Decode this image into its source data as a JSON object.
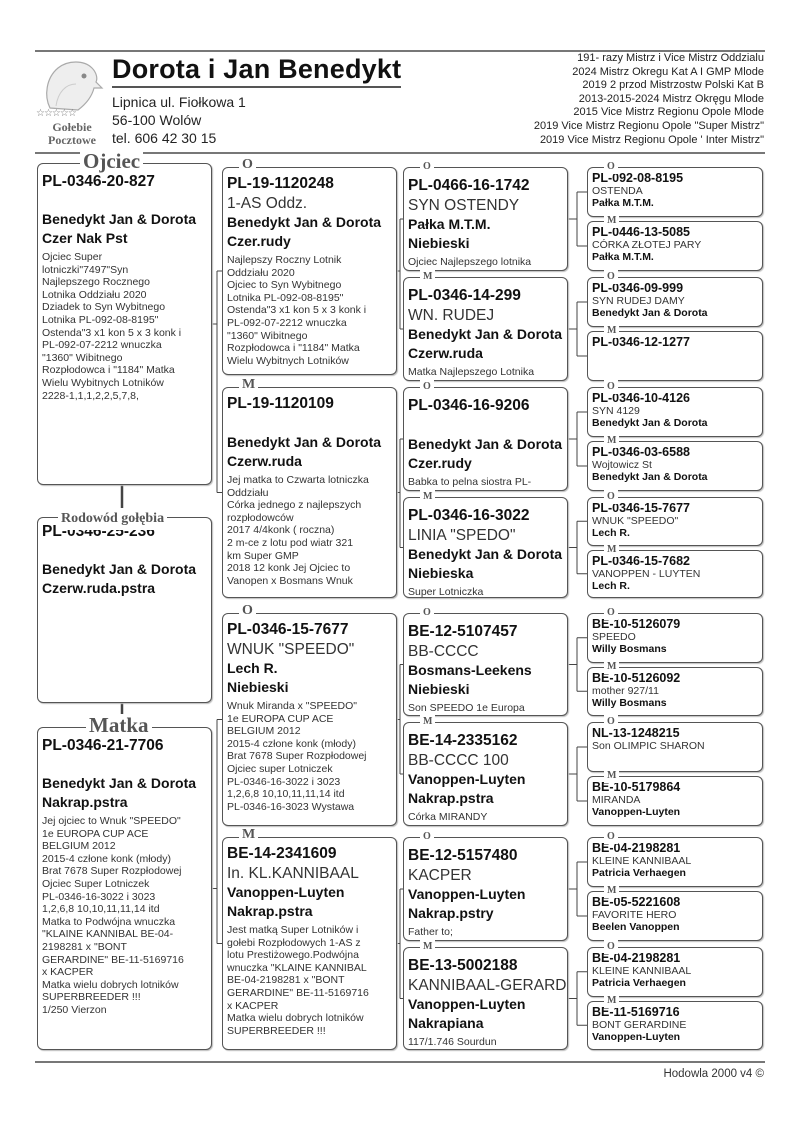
{
  "header": {
    "title": "Dorota i Jan Benedykt",
    "address_line1": "Lipnica ul. Fiołkowa 1",
    "address_line2": " 56-100 Wolów",
    "phone": "tel. 606 42 30 15",
    "logo_text": {
      "stars": "☆☆☆☆☆",
      "line1": "Gołebie",
      "line2": "Pocztowe"
    },
    "achievements": [
      "191- razy  Mistrz i Vice Mistrz Oddzialu",
      "2024 Mistrz Okregu Kat A I GMP  Mlode",
      "2019 2 przod Mistrzostw Polski Kat B",
      "2013-2015-2024 Mistrz Okręgu Mlode",
      "2015 Vice Mistrz Regionu Opole Mlode",
      "2019 Vice Mistrz Regionu Opole \"Super Mistrz\"",
      "2019 Vice Mistrz Regionu Opole ' Inter Mistrz\""
    ]
  },
  "pedigree": {
    "father": {
      "label": "Ojciec",
      "ring": "PL-0346-20-827",
      "name": "",
      "owner": "Benedykt Jan & Dorota",
      "color": "Czer Nak Pst",
      "notes": "Ojciec Super\nlotniczki\"7497\"Syn\nNajlepszego Rocznego\nLotnika Oddziału 2020\nDziadek to Syn Wybitnego\nLotnika PL-092-08-8195\"\nOstenda\"3 x1 kon 5 x 3 konk i\nPL-092-07-2212 wnuczka\n\"1360\" Wibitnego\nRozpłodowca i \"1184\" Matka\nWielu Wybitnych Lotników\n2228-1,1,1,2,2,5,7,8,"
    },
    "subject": {
      "label": "Rodowód gołębia",
      "ring": "PL-0346-25-236",
      "name": "",
      "owner": "Benedykt Jan & Dorota",
      "color": "Czerw.ruda.pstra",
      "notes": ""
    },
    "mother": {
      "label": "Matka",
      "ring": "PL-0346-21-7706",
      "name": "",
      "owner": "Benedykt Jan & Dorota",
      "color": "Nakrap.pstra",
      "notes": " Jej ojciec to Wnuk \"SPEEDO\"\n1e EUROPA CUP ACE\nBELGIUM 2012\n2015-4 człone konk (młody)\nBrat 7678 Super  Rozpłodowej\nOjciec Super Lotniczek\n PL-0346-16-3022 i 3023\n1,2,6,8 10,10,11,11,14 itd\nMatka to Podwójna wnuczka\n\"KLAINE KANNIBAL BE-04-\n2198281  x \"BONT\nGERARDINE\" BE-11-5169716\nx KACPER\nMatka wielu dobrych lotników\nSUPERBREEDER !!!\n1/250 Vierzon"
    },
    "gen2": [
      {
        "label": "O",
        "ring": "PL-19-1120248",
        "name": "1-AS Oddz.",
        "owner": "Benedykt Jan & Dorota",
        "color": "Czer.rudy",
        "notes": "Najlepszy Roczny Lotnik\nOddziału 2020\nOjciec to Syn Wybitnego\nLotnika PL-092-08-8195\"\nOstenda\"3 x1 kon 5 x 3 konk i\nPL-092-07-2212 wnuczka\n\"1360\" Wibitnego\nRozpłodowca i \"1184\" Matka\nWielu Wybitnych Lotników"
      },
      {
        "label": "M",
        "ring": "PL-19-1120109",
        "name": "",
        "owner": "Benedykt Jan & Dorota",
        "color": "Czerw.ruda",
        "notes": "Jej matka to Czwarta  lotniczka\nOddziału\nCórka jednego z najlepszych\nrozpłodowców\n2017 4/4konk ( roczna)\n 2 m-ce z lotu pod wiatr 321\nkm Super GMP\n2018 12 konk Jej Ojciec to\nVanopen x  Bosmans Wnuk"
      },
      {
        "label": "O",
        "ring": "PL-0346-15-7677",
        "name": "WNUK \"SPEEDO\"",
        "owner": "Lech R.",
        "color": "Niebieski",
        "notes": " Wnuk Miranda x \"SPEEDO\"\n1e EUROPA CUP ACE\nBELGIUM 2012\n2015-4 człone konk (młody)\nBrat 7678 Super  Rozpłodowej\nOjciec super Lotniczek\n PL-0346-16-3022 i 3023\n1,2,6,8 10,10,11,11,14 itd\nPL-0346-16-3023 Wystawa"
      },
      {
        "label": "M",
        "ring": "BE-14-2341609",
        "name": " In. KL.KANNIBAAL",
        "owner": "Vanoppen-Luyten",
        "color": "Nakrap.pstra",
        "notes": "Jest matką Super Lotników i\ngołebi Rozpłodowych 1-AS z\nlotu Prestiżowego.Podwójna\nwnuczka \"KLAINE KANNIBAL\nBE-04-2198281  x \"BONT\nGERARDINE\" BE-11-5169716\nx KACPER\nMatka wielu dobrych lotników\nSUPERBREEDER !!!"
      }
    ],
    "gen3": [
      {
        "label": "O",
        "ring": "PL-0466-16-1742",
        "name": "SYN OSTENDY",
        "owner": "Pałka M.T.M.",
        "color": "Niebieski",
        "notes": "Ojciec Najlepszego lotnika"
      },
      {
        "label": "M",
        "ring": "PL-0346-14-299",
        "name": "WN. RUDEJ",
        "owner": "Benedykt Jan & Dorota",
        "color": "Czerw.ruda",
        "notes": "Matka Najlepszego Lotnika"
      },
      {
        "label": "O",
        "ring": "PL-0346-16-9206",
        "name": "",
        "owner": "Benedykt Jan & Dorota",
        "color": "Czer.rudy",
        "notes": "Babka to pelna siostra PL-"
      },
      {
        "label": "M",
        "ring": "PL-0346-16-3022",
        "name": "LINIA \"SPEDO\"",
        "owner": "Benedykt Jan & Dorota",
        "color": "Niebieska",
        "notes": "Super Lotniczka"
      },
      {
        "label": "O",
        "ring": "BE-12-5107457",
        "name": "BB-CCCC",
        "owner": "Bosmans-Leekens",
        "color": "Niebieski",
        "notes": "Son SPEEDO 1e Europa"
      },
      {
        "label": "M",
        "ring": "BE-14-2335162",
        "name": "BB-CCCC 100",
        "owner": "Vanoppen-Luyten",
        "color": "Nakrap.pstra",
        "notes": "Córka MIRANDY"
      },
      {
        "label": "O",
        "ring": "BE-12-5157480",
        "name": "KACPER",
        "owner": "Vanoppen-Luyten",
        "color": "Nakrap.pstry",
        "notes": "Father to;"
      },
      {
        "label": "M",
        "ring": "BE-13-5002188",
        "name": "KANNIBAAL-GERARD",
        "owner": "Vanoppen-Luyten",
        "color": "Nakrapiana",
        "notes": "117/1.746 Sourdun"
      }
    ],
    "gen4": [
      {
        "label": "O",
        "ring": "PL-092-08-8195",
        "name": "OSTENDA",
        "owner": "Pałka M.T.M."
      },
      {
        "label": "M",
        "ring": "PL-0446-13-5085",
        "name": "CÓRKA ZŁOTEJ PARY",
        "owner": "Pałka M.T.M."
      },
      {
        "label": "O",
        "ring": "PL-0346-09-999",
        "name": "SYN RUDEJ DAMY",
        "owner": "Benedykt Jan & Dorota"
      },
      {
        "label": "M",
        "ring": "PL-0346-12-1277",
        "name": "",
        "owner": ""
      },
      {
        "label": "O",
        "ring": "PL-0346-10-4126",
        "name": "SYN 4129",
        "owner": "Benedykt Jan & Dorota"
      },
      {
        "label": "M",
        "ring": "PL-0346-03-6588",
        "name": "Wojtowicz St",
        "owner": "Benedykt Jan & Dorota"
      },
      {
        "label": "O",
        "ring": "PL-0346-15-7677",
        "name": "WNUK \"SPEEDO\"",
        "owner": "Lech R."
      },
      {
        "label": "M",
        "ring": "PL-0346-15-7682",
        "name": "VANOPPEN - LUYTEN",
        "owner": "Lech R."
      },
      {
        "label": "O",
        "ring": "BE-10-5126079",
        "name": "SPEEDO",
        "owner": "Willy Bosmans"
      },
      {
        "label": "M",
        "ring": "BE-10-5126092",
        "name": "mother 927/11",
        "owner": "Willy Bosmans"
      },
      {
        "label": "O",
        "ring": "NL-13-1248215",
        "name": "Son OLIMPIC SHARON",
        "owner": ""
      },
      {
        "label": "M",
        "ring": "BE-10-5179864",
        "name": "MIRANDA",
        "owner": "Vanoppen-Luyten"
      },
      {
        "label": "O",
        "ring": "BE-04-2198281",
        "name": "KLEINE KANNIBAAL",
        "owner": "Patricia Verhaegen"
      },
      {
        "label": "M",
        "ring": "BE-05-5221608",
        "name": "FAVORITE HERO",
        "owner": "Beelen Vanoppen"
      },
      {
        "label": "O",
        "ring": "BE-04-2198281",
        "name": "KLEINE KANNIBAAL",
        "owner": "Patricia Verhaegen"
      },
      {
        "label": "M",
        "ring": "BE-11-5169716",
        "name": "BONT GERARDINE",
        "owner": "Vanoppen-Luyten"
      }
    ]
  },
  "footer": "Hodowla 2000 v4 ©"
}
